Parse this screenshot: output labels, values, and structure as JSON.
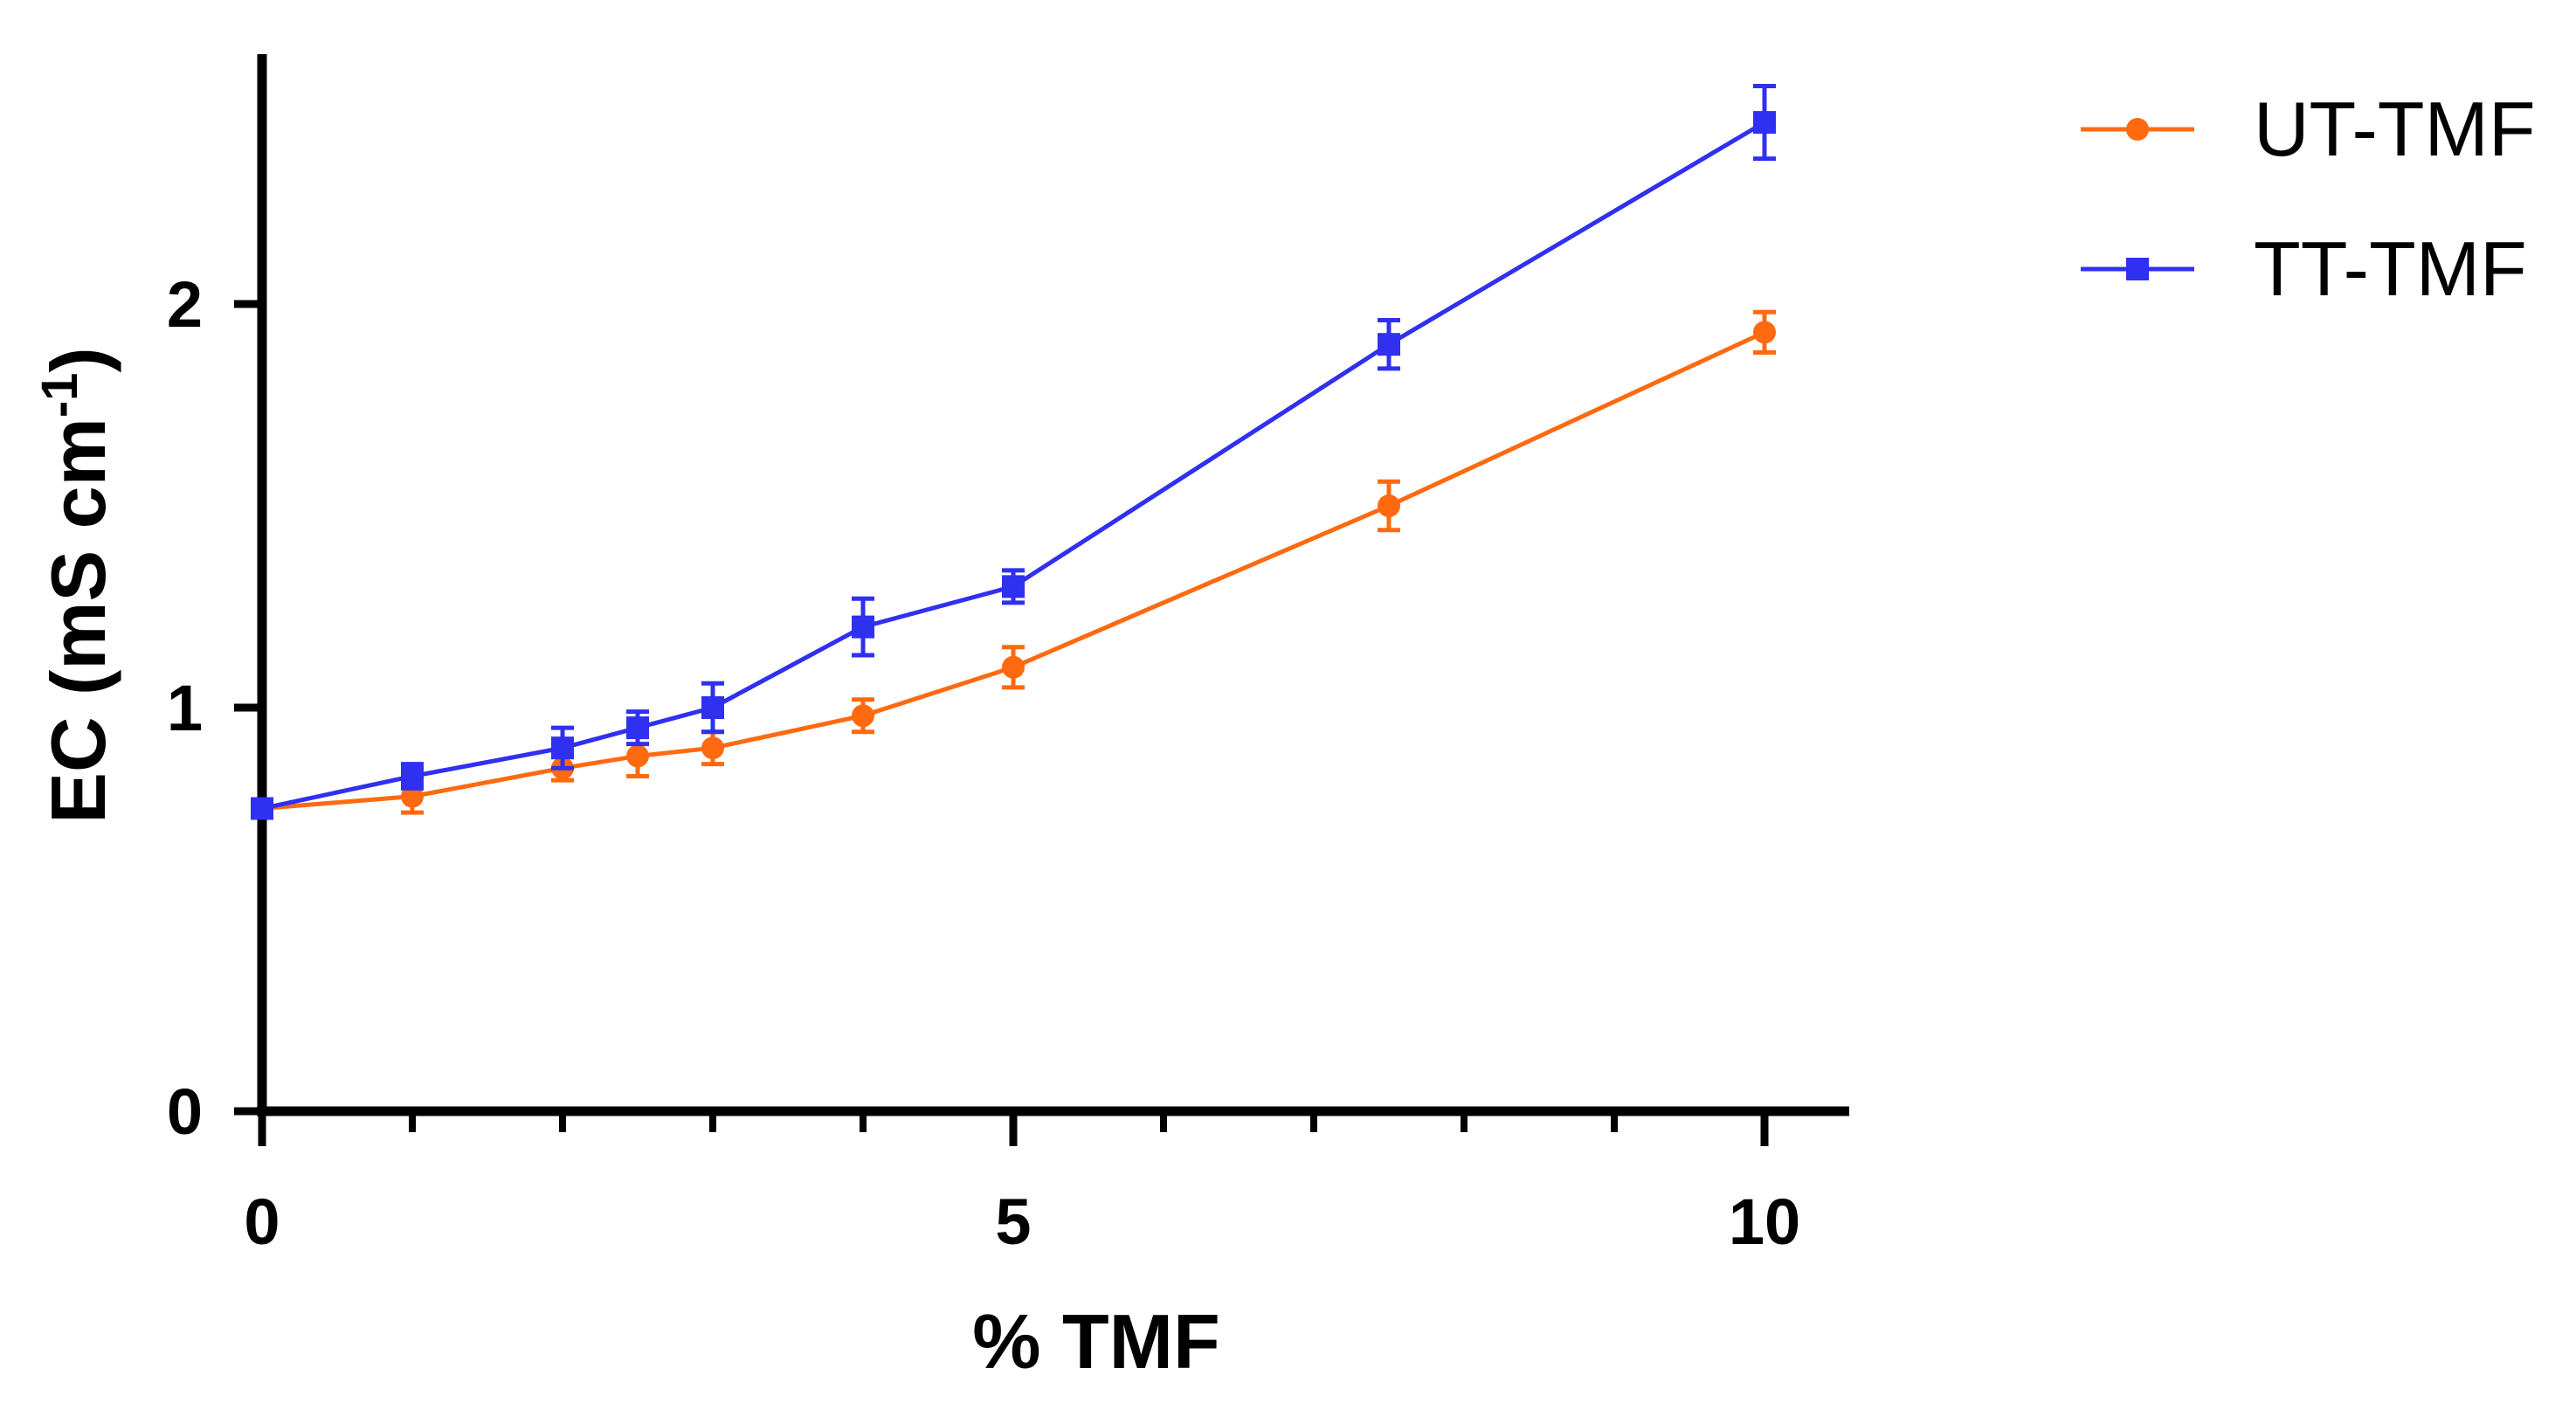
{
  "chart_data": {
    "type": "line",
    "title": "",
    "xlabel": "% TMF",
    "ylabel": {
      "main": "EC (mS cm",
      "superscript": "-1",
      "close": ")"
    },
    "xlim": [
      0,
      10.5
    ],
    "ylim": [
      0,
      2.6
    ],
    "x_major_ticks": [
      0,
      5,
      10
    ],
    "x_major_tick_labels": [
      "0",
      "5",
      "10"
    ],
    "x_minor_ticks": [
      1,
      2,
      3,
      4,
      6,
      7,
      8,
      9
    ],
    "y_major_ticks": [
      0,
      1,
      2
    ],
    "y_major_tick_labels": [
      "0",
      "1",
      "2"
    ],
    "grid": false,
    "legend_position": "top-right",
    "series": [
      {
        "name": "UT-TMF",
        "color": "#ff6a10",
        "marker": "circle",
        "x": [
          0,
          1,
          2,
          2.5,
          3,
          4,
          5,
          7.5,
          10
        ],
        "values": [
          0.75,
          0.78,
          0.85,
          0.88,
          0.9,
          0.98,
          1.1,
          1.5,
          1.93
        ],
        "errors": [
          0.01,
          0.04,
          0.03,
          0.05,
          0.04,
          0.04,
          0.05,
          0.06,
          0.05
        ]
      },
      {
        "name": "TT-TMF",
        "color": "#3030f0",
        "marker": "square",
        "x": [
          0,
          1,
          2,
          2.5,
          3,
          4,
          5,
          7.5,
          10
        ],
        "values": [
          0.75,
          0.83,
          0.9,
          0.95,
          1.0,
          1.2,
          1.3,
          1.9,
          2.45
        ],
        "errors": [
          0.01,
          0.03,
          0.05,
          0.04,
          0.06,
          0.07,
          0.04,
          0.06,
          0.09
        ]
      }
    ]
  }
}
